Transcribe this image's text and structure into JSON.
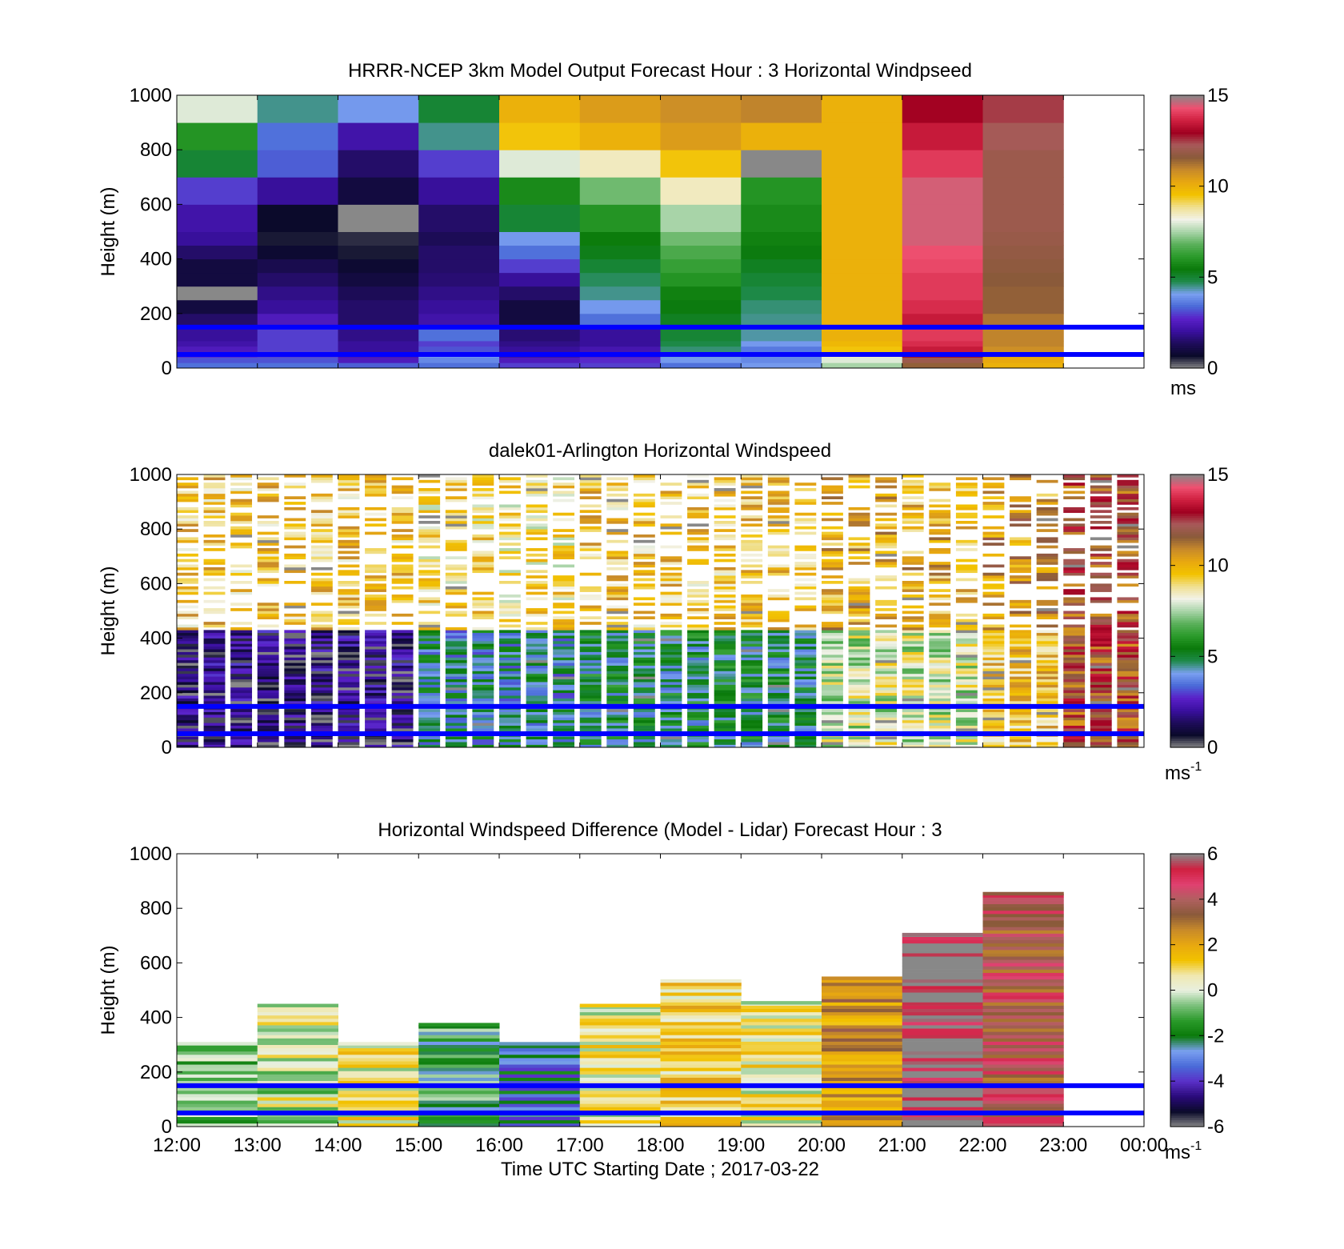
{
  "figure": {
    "xlabel": "Time UTC  Starting Date ; 2017-03-22",
    "xticks": [
      "12:00",
      "13:00",
      "14:00",
      "15:00",
      "16:00",
      "17:00",
      "18:00",
      "19:00",
      "20:00",
      "21:00",
      "22:00",
      "23:00",
      "00:00"
    ],
    "yticks": [
      "0",
      "200",
      "400",
      "600",
      "800",
      "1000"
    ],
    "ylabel": "Height (m)",
    "reference_lines_m": [
      50,
      150
    ],
    "reference_line_color": "#0000ff"
  },
  "colormaps": {
    "speed": [
      "#888888",
      "#0a0a2a",
      "#1e0c5a",
      "#3a10a0",
      "#5a20c8",
      "#4a6ad8",
      "#7aa0f0",
      "#1e8a4a",
      "#0a7a0a",
      "#2a9a2a",
      "#5ab05a",
      "#a8d4a8",
      "#f2f2e8",
      "#f0e090",
      "#f2c200",
      "#e8a810",
      "#c88a2a",
      "#8a5a3a",
      "#a85a5a",
      "#a00020",
      "#d02040",
      "#ee5070",
      "#888888"
    ],
    "diff": [
      "#888888",
      "#0a0a2a",
      "#2a0a7a",
      "#5a30c8",
      "#4a6ad8",
      "#7aa0f0",
      "#0a7a0a",
      "#2a9a2a",
      "#7ac07a",
      "#e8f0e0",
      "#f0e8b0",
      "#f2c200",
      "#e8a810",
      "#c88a2a",
      "#8a5a3a",
      "#b06060",
      "#e04070",
      "#d02040",
      "#888888"
    ]
  },
  "panels": [
    {
      "title": "HRRR-NCEP 3km Model Output   Forecast Hour : 3 Horizontal Windpseed",
      "colorbar": {
        "ticks": [
          "0",
          "5",
          "10",
          "15"
        ],
        "range": [
          0,
          15
        ],
        "cmap": "speed",
        "unit": "ms",
        "unit_sup": ""
      }
    },
    {
      "title": "dalek01-Arlington  Horizontal Windspeed",
      "colorbar": {
        "ticks": [
          "0",
          "5",
          "10",
          "15"
        ],
        "range": [
          0,
          15
        ],
        "cmap": "speed",
        "unit": "ms",
        "unit_sup": "-1"
      }
    },
    {
      "title": "Horizontal Windspeed Difference (Model - Lidar) Forecast Hour : 3",
      "colorbar": {
        "ticks": [
          "-6",
          "-4",
          "-2",
          "0",
          "2",
          "4",
          "6"
        ],
        "range": [
          -6,
          6
        ],
        "cmap": "diff",
        "unit": "ms",
        "unit_sup": "-1"
      }
    }
  ],
  "chart_data": [
    {
      "type": "heatmap",
      "title": "HRRR-NCEP 3km Model Output   Forecast Hour : 3 Horizontal Windpseed",
      "xlabel": "",
      "ylabel": "Height (m)",
      "x_range": [
        "12:00",
        "00:00"
      ],
      "ylim": [
        0,
        1000
      ],
      "z_unit": "ms",
      "zlim": [
        0,
        15
      ],
      "hour_columns": [
        "12:00",
        "13:00",
        "14:00",
        "15:00",
        "16:00",
        "17:00",
        "18:00",
        "19:00",
        "20:00",
        "21:00",
        "22:00",
        "23:00"
      ],
      "layer_bounds_m": [
        0,
        20,
        40,
        60,
        80,
        100,
        150,
        200,
        250,
        300,
        350,
        400,
        450,
        500,
        600,
        700,
        800,
        900,
        1000
      ],
      "speed_ms_by_hour": [
        [
          3.5,
          3.2,
          2.8,
          2.5,
          2.2,
          2.0,
          1.5,
          1.0,
          0.0,
          1.0,
          1.0,
          1.5,
          2.0,
          2.2,
          3.0,
          5.0,
          6.0,
          8.0
        ],
        [
          3.5,
          3.2,
          3.0,
          3.0,
          3.0,
          3.0,
          2.5,
          2.0,
          1.8,
          1.5,
          1.2,
          0.8,
          0.6,
          0.7,
          2.0,
          3.3,
          3.5,
          4.5
        ],
        [
          3.3,
          2.5,
          2.3,
          2.0,
          2.0,
          1.8,
          1.5,
          1.5,
          1.3,
          1.0,
          0.8,
          0.6,
          0.5,
          0.0,
          1.0,
          1.5,
          2.2,
          4.0
        ],
        [
          3.5,
          3.8,
          4.0,
          3.2,
          3.0,
          3.5,
          2.2,
          2.0,
          1.8,
          1.6,
          1.5,
          1.5,
          1.3,
          1.5,
          2.0,
          3.0,
          4.5,
          5.0
        ],
        [
          3.0,
          2.5,
          2.0,
          2.0,
          1.8,
          1.6,
          1.0,
          1.0,
          1.5,
          2.0,
          3.0,
          3.5,
          4.0,
          5.0,
          5.8,
          8.0,
          9.5,
          10.0
        ],
        [
          3.0,
          2.8,
          2.5,
          2.3,
          2.0,
          2.0,
          3.5,
          4.0,
          4.5,
          4.7,
          5.0,
          5.3,
          5.5,
          6.0,
          7.0,
          8.5,
          10.0,
          10.5
        ],
        [
          3.5,
          4.0,
          4.2,
          4.6,
          4.8,
          5.0,
          5.2,
          5.4,
          5.6,
          6.0,
          6.3,
          6.6,
          7.0,
          7.5,
          8.5,
          9.5,
          10.5,
          10.8
        ],
        [
          4.0,
          3.8,
          3.8,
          3.6,
          4.0,
          4.4,
          4.5,
          4.6,
          4.8,
          5.0,
          5.2,
          5.4,
          5.6,
          5.8,
          6.0,
          0.0,
          10.0,
          11.0
        ],
        [
          7.5,
          8.0,
          8.5,
          9.5,
          9.8,
          10.0,
          10.0,
          10.0,
          10.0,
          10.0,
          10.0,
          10.0,
          10.0,
          10.0,
          10.0,
          10.0,
          10.0,
          10.0
        ],
        [
          11.5,
          12.0,
          13.0,
          13.5,
          13.8,
          14.0,
          13.5,
          13.8,
          14.0,
          14.0,
          14.2,
          14.3,
          14.5,
          14.5,
          14.5,
          14.0,
          13.5,
          13.0
        ],
        [
          10.0,
          10.2,
          10.5,
          10.8,
          11.0,
          11.0,
          11.2,
          11.5,
          11.5,
          11.6,
          11.7,
          11.8,
          11.9,
          12.0,
          12.0,
          12.0,
          12.2,
          12.5
        ],
        [
          null,
          null,
          null,
          null,
          null,
          null,
          null,
          null,
          null,
          null,
          null,
          null,
          null,
          null,
          null,
          null,
          null,
          null
        ]
      ]
    },
    {
      "type": "heatmap",
      "title": "dalek01-Arlington  Horizontal Windspeed",
      "xlabel": "",
      "ylabel": "Height (m)",
      "x_range": [
        "12:00",
        "00:00"
      ],
      "ylim": [
        0,
        1000
      ],
      "z_unit": "ms-1",
      "zlim": [
        0,
        15
      ],
      "regimes_approx": [
        {
          "from": "12:00",
          "to": "15:00",
          "below_400m_ms": 1.5,
          "upper_sparse_ms": 9.5
        },
        {
          "from": "15:00",
          "to": "17:00",
          "below_400m_ms": 4.5,
          "upper_sparse_ms": 9.0
        },
        {
          "from": "17:00",
          "to": "20:00",
          "below_400m_ms": 5.0,
          "upper_sparse_ms": 9.5
        },
        {
          "from": "20:00",
          "to": "22:00",
          "below_400m_ms": 8.0,
          "upper_sparse_ms": 10.0
        },
        {
          "from": "22:00",
          "to": "23:00",
          "below_400m_ms": 9.5,
          "upper_sparse_ms": 10.5
        },
        {
          "from": "23:00",
          "to": "00:00",
          "below_400m_ms": 12.0,
          "upper_sparse_ms": 12.0
        }
      ]
    },
    {
      "type": "heatmap",
      "title": "Horizontal Windspeed Difference (Model - Lidar) Forecast Hour : 3",
      "xlabel": "Time UTC  Starting Date ; 2017-03-22",
      "ylabel": "Height (m)",
      "x_range": [
        "12:00",
        "00:00"
      ],
      "ylim": [
        0,
        1000
      ],
      "z_unit": "ms-1",
      "zlim": [
        -6,
        6
      ],
      "regimes_approx": [
        {
          "from": "12:00",
          "to": "13:00",
          "data_top_m": 310,
          "mean_diff_ms": -1.0
        },
        {
          "from": "13:00",
          "to": "14:00",
          "data_top_m": 450,
          "mean_diff_ms": 0.0
        },
        {
          "from": "14:00",
          "to": "15:00",
          "data_top_m": 310,
          "mean_diff_ms": 0.5
        },
        {
          "from": "15:00",
          "to": "16:00",
          "data_top_m": 380,
          "mean_diff_ms": -1.5
        },
        {
          "from": "16:00",
          "to": "17:00",
          "data_top_m": 310,
          "mean_diff_ms": -2.8
        },
        {
          "from": "17:00",
          "to": "18:00",
          "data_top_m": 450,
          "mean_diff_ms": 0.5
        },
        {
          "from": "18:00",
          "to": "19:00",
          "data_top_m": 540,
          "mean_diff_ms": 1.0
        },
        {
          "from": "19:00",
          "to": "20:00",
          "data_top_m": 460,
          "mean_diff_ms": 0.5
        },
        {
          "from": "20:00",
          "to": "21:00",
          "data_top_m": 550,
          "mean_diff_ms": 2.5
        },
        {
          "from": "21:00",
          "to": "22:00",
          "data_top_m": 710,
          "mean_diff_ms": 6.0
        },
        {
          "from": "22:00",
          "to": "23:00",
          "data_top_m": 860,
          "mean_diff_ms": 4.0
        }
      ]
    }
  ]
}
